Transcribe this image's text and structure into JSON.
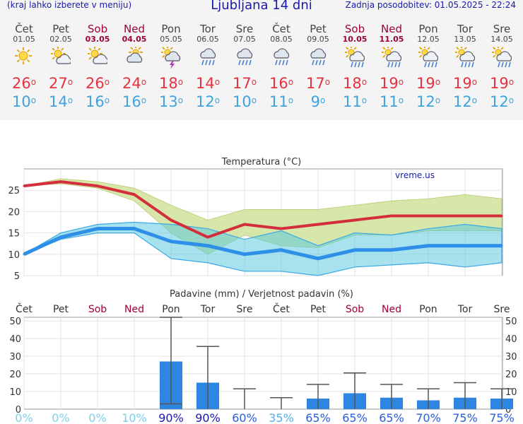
{
  "header": {
    "menu_note": "(kraj lahko izberete v meniju)",
    "title": "Ljubljana 14 dni",
    "last_update": "Zadnja posodobitev: 01.05.2025 - 22:24"
  },
  "days": [
    {
      "name": "Čet",
      "date": "01.05",
      "weekend": false,
      "icon": "sun-icon",
      "tmax": "26",
      "tmin": "10"
    },
    {
      "name": "Pet",
      "date": "02.05",
      "weekend": false,
      "icon": "sun-cloud-icon",
      "tmax": "27",
      "tmin": "14"
    },
    {
      "name": "Sob",
      "date": "03.05",
      "weekend": true,
      "icon": "sun-cloud-icon",
      "tmax": "26",
      "tmin": "16"
    },
    {
      "name": "Ned",
      "date": "04.05",
      "weekend": true,
      "icon": "cloud-sun-icon",
      "tmax": "24",
      "tmin": "16"
    },
    {
      "name": "Pon",
      "date": "05.05",
      "weekend": false,
      "icon": "thunderstorm-icon",
      "tmax": "18",
      "tmin": "13"
    },
    {
      "name": "Tor",
      "date": "06.05",
      "weekend": false,
      "icon": "cloud-rain-icon",
      "tmax": "14",
      "tmin": "12"
    },
    {
      "name": "Sre",
      "date": "07.05",
      "weekend": false,
      "icon": "cloud-rain-icon",
      "tmax": "17",
      "tmin": "10"
    },
    {
      "name": "Čet",
      "date": "08.05",
      "weekend": false,
      "icon": "cloud-rain-icon",
      "tmax": "16",
      "tmin": "11"
    },
    {
      "name": "Pet",
      "date": "09.05",
      "weekend": false,
      "icon": "cloud-rain-icon",
      "tmax": "17",
      "tmin": "9"
    },
    {
      "name": "Sob",
      "date": "10.05",
      "weekend": true,
      "icon": "sun-rain-icon",
      "tmax": "18",
      "tmin": "11"
    },
    {
      "name": "Ned",
      "date": "11.05",
      "weekend": true,
      "icon": "sun-rain-icon",
      "tmax": "19",
      "tmin": "11"
    },
    {
      "name": "Pon",
      "date": "12.05",
      "weekend": false,
      "icon": "sun-rain-icon",
      "tmax": "19",
      "tmin": "12"
    },
    {
      "name": "Tor",
      "date": "13.05",
      "weekend": false,
      "icon": "sun-rain-icon",
      "tmax": "19",
      "tmin": "12"
    },
    {
      "name": "Sre",
      "date": "14.05",
      "weekend": false,
      "icon": "sun-rain-icon",
      "tmax": "19",
      "tmin": "12"
    }
  ],
  "colors": {
    "weekend": "#a0003c",
    "tmax": "#e8313f",
    "tmin": "#3ea3e0",
    "title": "#1a1aa8",
    "bar": "#2e86e0"
  },
  "chart_data": [
    {
      "type": "line",
      "title": "Temperatura (°C)",
      "watermark": "vreme.us",
      "ylim": [
        5,
        30
      ],
      "yticks": [
        5,
        10,
        15,
        20,
        25
      ],
      "series": [
        {
          "name": "max",
          "values": [
            26,
            27,
            26,
            24,
            18,
            14,
            17,
            16,
            17,
            18,
            19,
            19,
            19,
            19
          ]
        },
        {
          "name": "min",
          "values": [
            10,
            14,
            16,
            16,
            13,
            12,
            10,
            11,
            9,
            11,
            11,
            12,
            12,
            12
          ]
        },
        {
          "name": "max_range_upper",
          "values": [
            26,
            27.7,
            27,
            25.5,
            21.5,
            18,
            20.5,
            20.5,
            20.5,
            21.5,
            22.5,
            23,
            24,
            23
          ]
        },
        {
          "name": "max_range_lower",
          "values": [
            26,
            26.5,
            25.5,
            22.5,
            15,
            10,
            14.5,
            12,
            11.5,
            14.5,
            14.5,
            15.5,
            15.5,
            15.5
          ]
        },
        {
          "name": "min_range_upper",
          "values": [
            10,
            15,
            17,
            17.5,
            17,
            16,
            13.5,
            15.5,
            12,
            15,
            14.5,
            16,
            17,
            16
          ]
        },
        {
          "name": "min_range_lower",
          "values": [
            10,
            13.5,
            15,
            15,
            9,
            8,
            6,
            6,
            5,
            7,
            7.5,
            8,
            7,
            8
          ]
        }
      ]
    },
    {
      "type": "bar",
      "title": "Padavine (mm) / Verjetnost padavin (%)",
      "categories": [
        "Čet",
        "Pet",
        "Sob",
        "Ned",
        "Pon",
        "Tor",
        "Sre",
        "Čet",
        "Pet",
        "Sob",
        "Ned",
        "Pon",
        "Tor",
        "Sre"
      ],
      "weekend": [
        false,
        false,
        true,
        true,
        false,
        false,
        false,
        false,
        false,
        true,
        true,
        false,
        false,
        false
      ],
      "values": [
        0,
        0,
        0,
        0,
        27,
        15,
        0,
        0,
        6,
        9,
        6.5,
        5,
        6.5,
        6
      ],
      "range_upper": [
        0,
        0,
        0,
        0,
        52,
        35.5,
        11.5,
        6.5,
        14,
        20.5,
        14,
        11.5,
        15,
        11.5
      ],
      "range_lower": [
        0,
        0,
        0,
        0,
        3,
        0,
        0,
        0,
        0,
        0,
        0,
        0,
        0,
        0
      ],
      "probability": [
        "0%",
        "0%",
        "0%",
        "10%",
        "90%",
        "90%",
        "60%",
        "35%",
        "65%",
        "65%",
        "65%",
        "70%",
        "75%",
        "75%"
      ],
      "probability_numeric": [
        0,
        0,
        0,
        10,
        90,
        90,
        60,
        35,
        65,
        65,
        65,
        70,
        75,
        75
      ],
      "ylim": [
        0,
        52
      ],
      "yticks": [
        0,
        10,
        20,
        30,
        40,
        50
      ]
    }
  ]
}
